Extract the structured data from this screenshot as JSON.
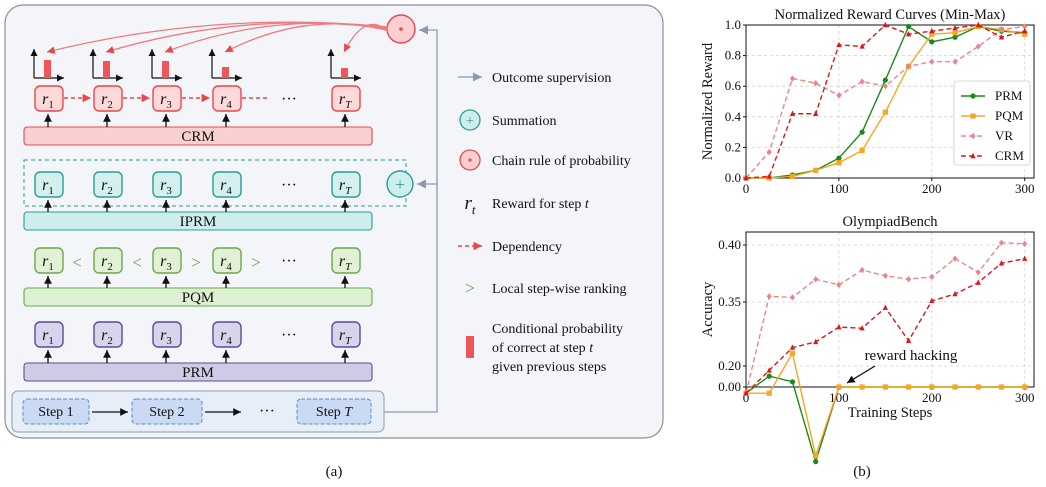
{
  "panel_a": {
    "caption": "(a)",
    "rows": {
      "crm": "CRM",
      "iprm": "IPRM",
      "pqm": "PQM",
      "prm": "PRM"
    },
    "reward_labels": [
      "r",
      "r",
      "r",
      "r",
      "r"
    ],
    "reward_subs": [
      "1",
      "2",
      "3",
      "4",
      "T"
    ],
    "ellipsis": "···",
    "pqm_ranks": [
      "<",
      "<",
      ">",
      ">"
    ],
    "steps": [
      "Step 1",
      "Step 2",
      "Step "
    ],
    "step_t": "T",
    "legend": {
      "outcome": "Outcome supervision",
      "summation": "Summation",
      "chain": "Chain rule of probability",
      "reward_pre": "Reward for step ",
      "reward_sym": "r",
      "reward_sub": "t",
      "reward_t": "t",
      "dependency": "Dependency",
      "ranking": "Local step-wise ranking",
      "cond1": "Conditional probability",
      "cond2_pre": "of correct at step ",
      "cond2_t": "t",
      "cond3": "given previous steps"
    },
    "colors": {
      "crm": "#e8474c",
      "iprm": "#2a9d96",
      "pqm": "#6aa84f",
      "prm": "#5b4a9e",
      "step": "#5a8fd0"
    }
  },
  "panel_b": {
    "caption": "(b)",
    "annotation": "reward hacking",
    "xlabel": "Training Steps"
  },
  "chart_data": [
    {
      "type": "line",
      "title": "Normalized Reward Curves (Min-Max)",
      "xlabel": "",
      "ylabel": "Normalized Reward",
      "xlim": [
        0,
        310
      ],
      "ylim": [
        0,
        1.0
      ],
      "xticks": [
        0,
        100,
        200,
        300
      ],
      "yticks": [
        0.0,
        0.2,
        0.4,
        0.6,
        0.8,
        1.0
      ],
      "legend_position": "right",
      "grid": true,
      "series": [
        {
          "name": "PRM",
          "color": "#1a8a1a",
          "marker": "circle",
          "dash": false,
          "x": [
            0,
            25,
            50,
            75,
            100,
            125,
            150,
            175,
            200,
            225,
            250,
            275,
            300
          ],
          "y": [
            0.0,
            0.0,
            0.02,
            0.05,
            0.13,
            0.3,
            0.64,
            0.99,
            0.89,
            0.92,
            0.99,
            0.96,
            0.95
          ]
        },
        {
          "name": "PQM",
          "color": "#f5a623",
          "marker": "square",
          "dash": false,
          "x": [
            0,
            25,
            50,
            75,
            100,
            125,
            150,
            175,
            200,
            225,
            250,
            275,
            300
          ],
          "y": [
            0.0,
            0.0,
            0.01,
            0.05,
            0.1,
            0.18,
            0.43,
            0.73,
            0.94,
            0.95,
            0.99,
            0.97,
            0.94
          ]
        },
        {
          "name": "VR",
          "color": "#e8868b",
          "marker": "diamond",
          "dash": true,
          "x": [
            0,
            25,
            50,
            75,
            100,
            125,
            150,
            175,
            200,
            225,
            250,
            275,
            300
          ],
          "y": [
            0.0,
            0.17,
            0.65,
            0.62,
            0.54,
            0.63,
            0.6,
            0.73,
            0.76,
            0.76,
            0.86,
            0.97,
            0.99
          ]
        },
        {
          "name": "CRM",
          "color": "#d7191c",
          "marker": "triangle",
          "dash": true,
          "x": [
            0,
            25,
            50,
            75,
            100,
            125,
            150,
            175,
            200,
            225,
            250,
            275,
            300
          ],
          "y": [
            0.0,
            0.01,
            0.42,
            0.42,
            0.87,
            0.86,
            1.0,
            0.94,
            0.96,
            0.98,
            1.0,
            0.92,
            0.96
          ]
        }
      ]
    },
    {
      "type": "line",
      "title": "OlympiadBench",
      "xlabel": "Training Steps",
      "ylabel": "Accuracy",
      "xlim": [
        0,
        310
      ],
      "ylim": [
        0.0,
        0.41
      ],
      "xticks": [
        0,
        100,
        200,
        300
      ],
      "yticks": [
        0.0,
        0.2,
        0.35,
        0.4
      ],
      "axis_break": true,
      "grid": true,
      "series": [
        {
          "name": "PRM",
          "color": "#1a8a1a",
          "marker": "circle",
          "dash": false,
          "x": [
            0,
            25,
            50,
            75,
            100,
            125,
            150,
            175,
            200,
            225,
            250,
            275,
            300
          ],
          "y": [
            0.27,
            0.285,
            0.28,
            0.21,
            0.0,
            0.0,
            0.0,
            0.0,
            0.0,
            0.0,
            0.0,
            0.0,
            0.0
          ]
        },
        {
          "name": "PQM",
          "color": "#f5a623",
          "marker": "square",
          "dash": false,
          "x": [
            0,
            25,
            50,
            75,
            100,
            125,
            150,
            175,
            200,
            225,
            250,
            275,
            300
          ],
          "y": [
            0.27,
            0.27,
            0.305,
            0.215,
            0.0,
            0.0,
            0.0,
            0.0,
            0.0,
            0.0,
            0.0,
            0.0,
            0.0
          ]
        },
        {
          "name": "VR",
          "color": "#e8868b",
          "marker": "diamond",
          "dash": true,
          "x": [
            0,
            25,
            50,
            75,
            100,
            125,
            150,
            175,
            200,
            225,
            250,
            275,
            300
          ],
          "y": [
            0.27,
            0.355,
            0.354,
            0.37,
            0.365,
            0.378,
            0.373,
            0.37,
            0.372,
            0.388,
            0.376,
            0.402,
            0.401
          ]
        },
        {
          "name": "CRM",
          "color": "#d7191c",
          "marker": "triangle",
          "dash": true,
          "x": [
            0,
            25,
            50,
            75,
            100,
            125,
            150,
            175,
            200,
            225,
            250,
            275,
            300
          ],
          "y": [
            0.27,
            0.29,
            0.31,
            0.315,
            0.328,
            0.327,
            0.345,
            0.316,
            0.351,
            0.357,
            0.367,
            0.384,
            0.388
          ]
        }
      ]
    }
  ]
}
